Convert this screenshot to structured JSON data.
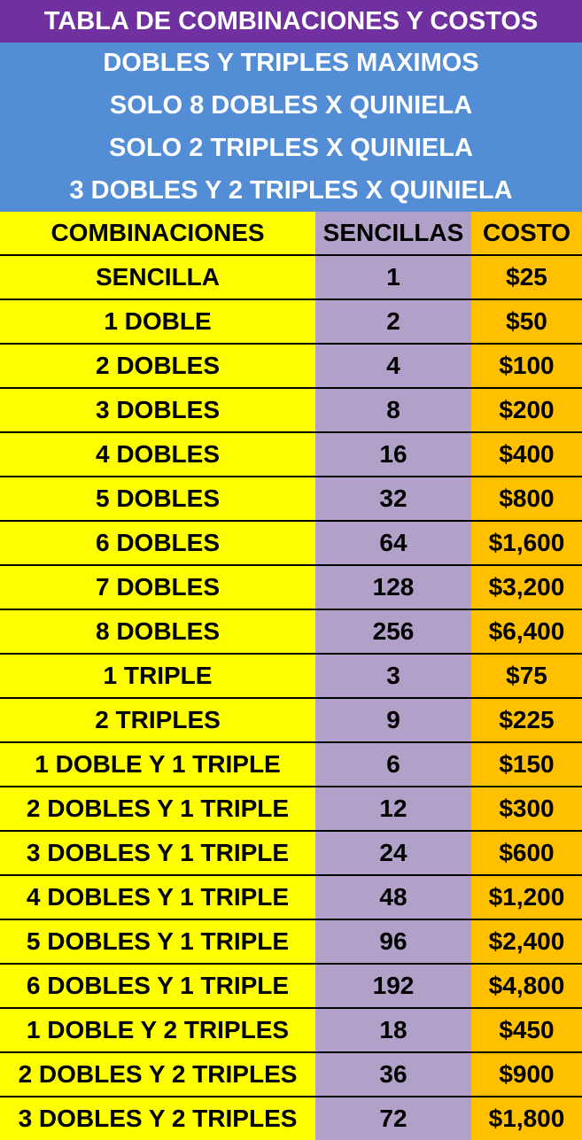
{
  "title": "TABLA DE COMBINACIONES Y COSTOS",
  "rules": [
    "DOBLES Y TRIPLES MAXIMOS",
    "SOLO 8 DOBLES X QUINIELA",
    "SOLO 2 TRIPLES X QUINIELA",
    "3 DOBLES Y 2 TRIPLES X QUINIELA"
  ],
  "table": {
    "headers": [
      "COMBINACIONES",
      "SENCILLAS",
      "COSTO"
    ],
    "rows": [
      {
        "combo": "SENCILLA",
        "sencillas": "1",
        "costo": "$25"
      },
      {
        "combo": "1 DOBLE",
        "sencillas": "2",
        "costo": "$50"
      },
      {
        "combo": "2 DOBLES",
        "sencillas": "4",
        "costo": "$100"
      },
      {
        "combo": "3 DOBLES",
        "sencillas": "8",
        "costo": "$200"
      },
      {
        "combo": "4 DOBLES",
        "sencillas": "16",
        "costo": "$400"
      },
      {
        "combo": "5 DOBLES",
        "sencillas": "32",
        "costo": "$800"
      },
      {
        "combo": "6 DOBLES",
        "sencillas": "64",
        "costo": "$1,600"
      },
      {
        "combo": "7 DOBLES",
        "sencillas": "128",
        "costo": "$3,200"
      },
      {
        "combo": "8 DOBLES",
        "sencillas": "256",
        "costo": "$6,400"
      },
      {
        "combo": "1 TRIPLE",
        "sencillas": "3",
        "costo": "$75"
      },
      {
        "combo": "2 TRIPLES",
        "sencillas": "9",
        "costo": "$225"
      },
      {
        "combo": "1 DOBLE Y 1 TRIPLE",
        "sencillas": "6",
        "costo": "$150"
      },
      {
        "combo": "2 DOBLES Y 1 TRIPLE",
        "sencillas": "12",
        "costo": "$300"
      },
      {
        "combo": "3 DOBLES Y 1 TRIPLE",
        "sencillas": "24",
        "costo": "$600"
      },
      {
        "combo": "4 DOBLES Y 1 TRIPLE",
        "sencillas": "48",
        "costo": "$1,200"
      },
      {
        "combo": "5 DOBLES Y 1 TRIPLE",
        "sencillas": "96",
        "costo": "$2,400"
      },
      {
        "combo": "6 DOBLES Y 1 TRIPLE",
        "sencillas": "192",
        "costo": "$4,800"
      },
      {
        "combo": "1 DOBLE Y 2 TRIPLES",
        "sencillas": "18",
        "costo": "$450"
      },
      {
        "combo": "2 DOBLES Y 2 TRIPLES",
        "sencillas": "36",
        "costo": "$900"
      },
      {
        "combo": "3 DOBLES Y 2 TRIPLES",
        "sencillas": "72",
        "costo": "$1,800"
      }
    ]
  },
  "colors": {
    "title_bg": "#7030a0",
    "rules_bg": "#538dd5",
    "combo_col": "#ffff00",
    "sencillas_col": "#b1a0c7",
    "costo_col": "#ffc000"
  }
}
